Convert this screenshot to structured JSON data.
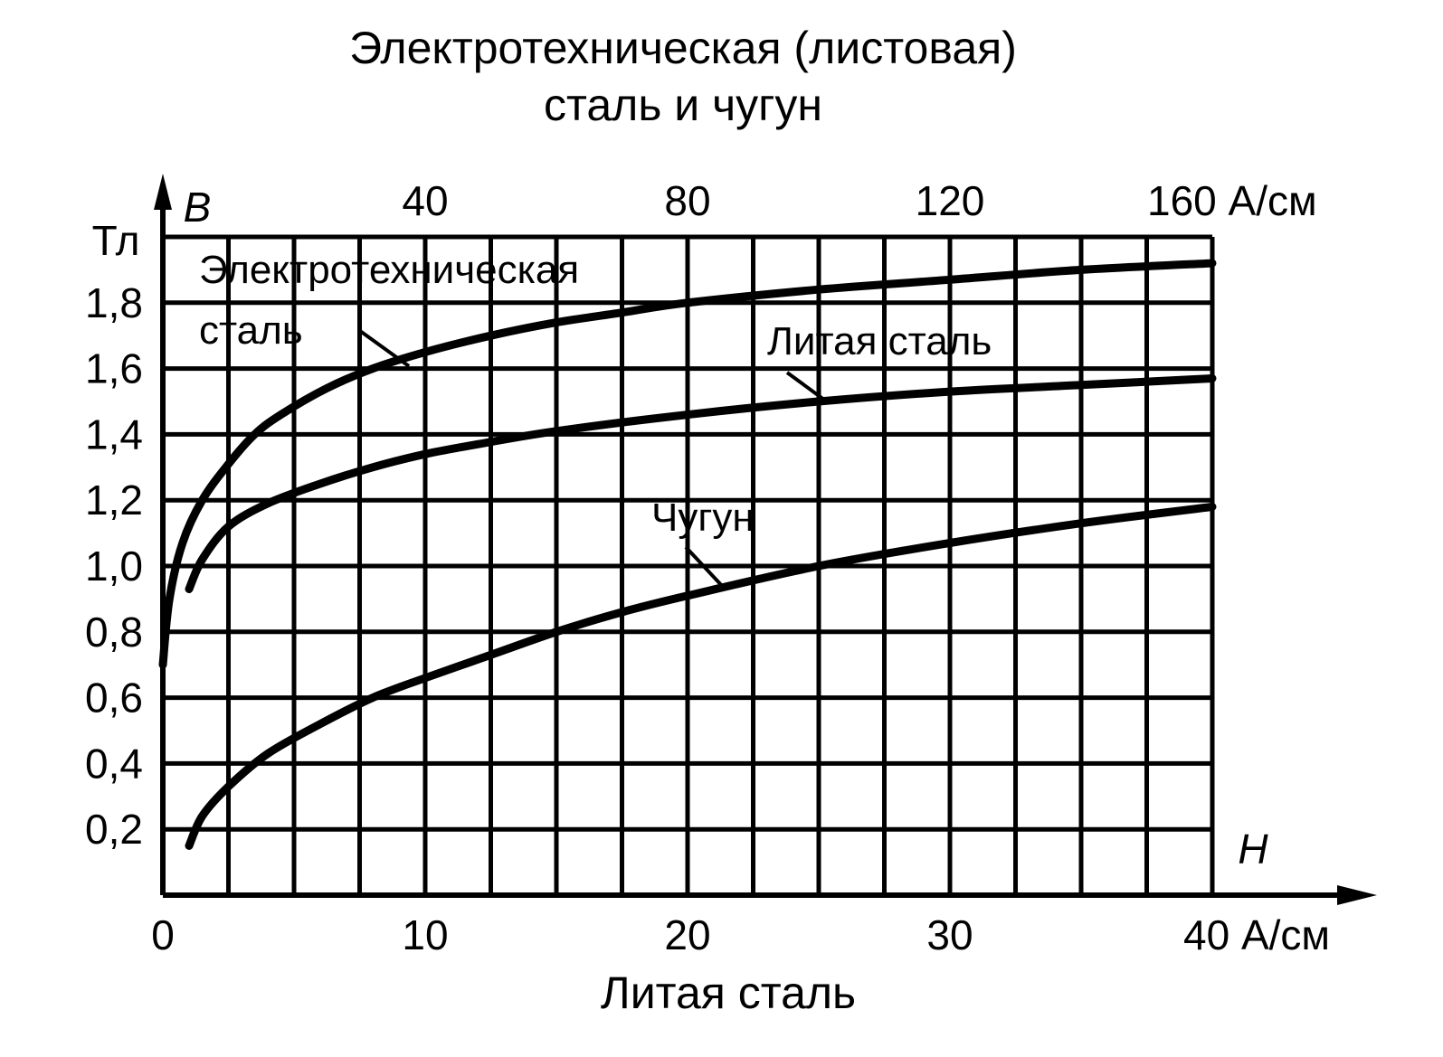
{
  "chart_data": {
    "type": "line",
    "title": "Электротехническая (листовая) сталь и чугун",
    "title_lines": [
      "Электротехническая (листовая)",
      "сталь и чугун"
    ],
    "y_axis": {
      "symbol": "B",
      "unit": "Тл",
      "ticks": [
        "0,2",
        "0,4",
        "0,6",
        "0,8",
        "1,0",
        "1,2",
        "1,4",
        "1,6",
        "1,8"
      ],
      "tick_values": [
        0.2,
        0.4,
        0.6,
        0.8,
        1.0,
        1.2,
        1.4,
        1.6,
        1.8
      ],
      "ylim": [
        0,
        2.0
      ]
    },
    "x_axis_bottom": {
      "symbol": "H",
      "label": "Литая сталь",
      "ticks": [
        "0",
        "10",
        "20",
        "30",
        "40 А/см"
      ],
      "tick_values": [
        0,
        10,
        20,
        30,
        40
      ],
      "xlim": [
        0,
        40
      ]
    },
    "x_axis_top": {
      "label": "Электротехническая (листовая) сталь и чугун",
      "ticks": [
        "40",
        "80",
        "120",
        "160 А/см"
      ],
      "tick_values": [
        40,
        80,
        120,
        160
      ],
      "xlim": [
        0,
        160
      ]
    },
    "grid": true,
    "series": [
      {
        "name": "Электротехническая сталь",
        "name_lines": [
          "Электротехническая",
          "сталь"
        ],
        "axis": "top",
        "x": [
          0,
          1,
          3,
          6,
          10,
          14,
          18,
          25,
          32,
          40,
          50,
          60,
          70,
          80,
          100,
          120,
          140,
          160
        ],
        "y": [
          0.7,
          0.9,
          1.07,
          1.2,
          1.31,
          1.4,
          1.46,
          1.54,
          1.6,
          1.65,
          1.7,
          1.74,
          1.77,
          1.8,
          1.84,
          1.87,
          1.9,
          1.92
        ]
      },
      {
        "name": "Литая сталь",
        "axis": "bottom",
        "x": [
          1,
          1.5,
          2.5,
          4,
          6,
          8,
          10,
          12,
          15,
          20,
          25,
          30,
          35,
          40
        ],
        "y": [
          0.93,
          1.02,
          1.12,
          1.19,
          1.25,
          1.3,
          1.34,
          1.37,
          1.41,
          1.46,
          1.5,
          1.53,
          1.55,
          1.57
        ]
      },
      {
        "name": "Чугун",
        "axis": "top",
        "x": [
          4,
          6,
          10,
          16,
          24,
          32,
          40,
          50,
          60,
          70,
          80,
          100,
          120,
          140,
          160
        ],
        "y": [
          0.15,
          0.24,
          0.33,
          0.43,
          0.52,
          0.6,
          0.66,
          0.73,
          0.8,
          0.86,
          0.91,
          1.0,
          1.07,
          1.13,
          1.18
        ]
      }
    ]
  }
}
